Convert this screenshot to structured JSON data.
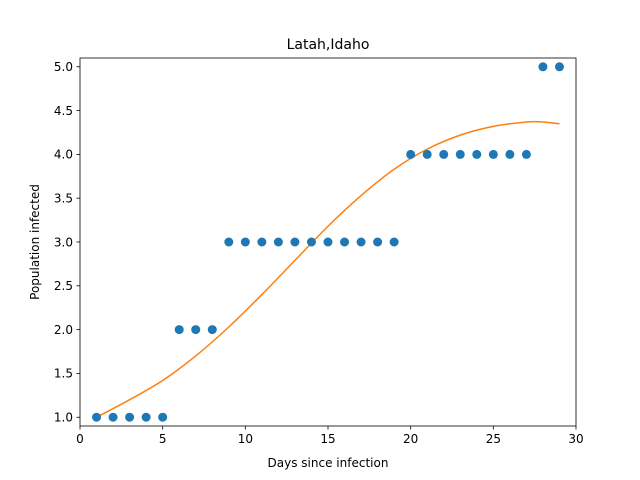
{
  "chart_data": {
    "type": "scatter",
    "title": "Latah,Idaho",
    "xlabel": "Days since infection",
    "ylabel": "Population infected",
    "xlim": [
      0,
      30
    ],
    "ylim": [
      0.9,
      5.1
    ],
    "xticks": [
      0,
      5,
      10,
      15,
      20,
      25,
      30
    ],
    "yticks": [
      1.0,
      1.5,
      2.0,
      2.5,
      3.0,
      3.5,
      4.0,
      4.5,
      5.0
    ],
    "ytick_labels": [
      "1.0",
      "1.5",
      "2.0",
      "2.5",
      "3.0",
      "3.5",
      "4.0",
      "4.5",
      "5.0"
    ],
    "grid": false,
    "series": [
      {
        "kind": "scatter",
        "color": "#1f77b4",
        "x": [
          1,
          2,
          3,
          4,
          5,
          6,
          7,
          8,
          9,
          10,
          11,
          12,
          13,
          14,
          15,
          16,
          17,
          18,
          19,
          20,
          21,
          22,
          23,
          24,
          25,
          26,
          27,
          28,
          29
        ],
        "y": [
          1,
          1,
          1,
          1,
          1,
          2,
          2,
          2,
          3,
          3,
          3,
          3,
          3,
          3,
          3,
          3,
          3,
          3,
          3,
          4,
          4,
          4,
          4,
          4,
          4,
          4,
          4,
          5,
          5
        ]
      },
      {
        "kind": "line",
        "color": "#ff7f0e",
        "x": [
          1,
          3,
          5,
          7,
          9,
          11,
          13,
          15,
          17,
          19,
          21,
          23,
          25,
          27,
          28,
          29
        ],
        "y": [
          1.0,
          1.2,
          1.42,
          1.7,
          2.03,
          2.4,
          2.79,
          3.18,
          3.53,
          3.83,
          4.06,
          4.22,
          4.32,
          4.37,
          4.37,
          4.35
        ]
      }
    ]
  }
}
